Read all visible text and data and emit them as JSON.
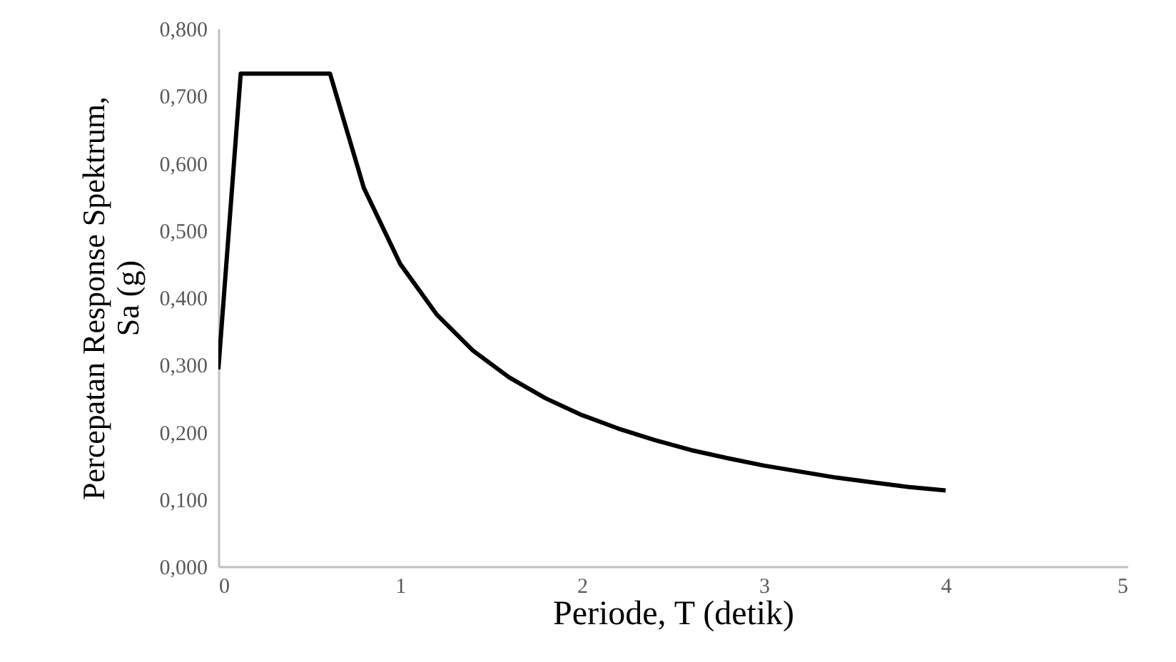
{
  "chart_data": {
    "type": "line",
    "xlabel": "Periode, T (detik)",
    "ylabel": "Percepatan Response Spektrum, Sa  (g)",
    "x": [
      0,
      0.123,
      0.614,
      0.8,
      1.0,
      1.2,
      1.4,
      1.6,
      1.8,
      2.0,
      2.2,
      2.4,
      2.6,
      2.8,
      3.0,
      3.2,
      3.4,
      3.6,
      3.8,
      4.0
    ],
    "series": [
      {
        "color": "#000000",
        "values": [
          0.293,
          0.733,
          0.733,
          0.563,
          0.45,
          0.375,
          0.321,
          0.281,
          0.25,
          0.225,
          0.205,
          0.188,
          0.173,
          0.161,
          0.15,
          0.141,
          0.132,
          0.125,
          0.118,
          0.113
        ]
      }
    ],
    "xlim": [
      0,
      5
    ],
    "xticks": [
      0,
      1,
      2,
      3,
      4,
      5
    ],
    "ylim": [
      0,
      0.8
    ],
    "yticks": [
      {
        "value": 0,
        "label": "0,000"
      },
      {
        "value": 0.1,
        "label": "0,100"
      },
      {
        "value": 0.2,
        "label": "0,200"
      },
      {
        "value": 0.3,
        "label": "0,300"
      },
      {
        "value": 0.4,
        "label": "0,400"
      },
      {
        "value": 0.5,
        "label": "0,500"
      },
      {
        "value": 0.6,
        "label": "0,600"
      },
      {
        "value": 0.7,
        "label": "0,700"
      },
      {
        "value": 0.8,
        "label": "0,800"
      }
    ],
    "grid": false,
    "marker": "none",
    "line_style": "solid"
  }
}
